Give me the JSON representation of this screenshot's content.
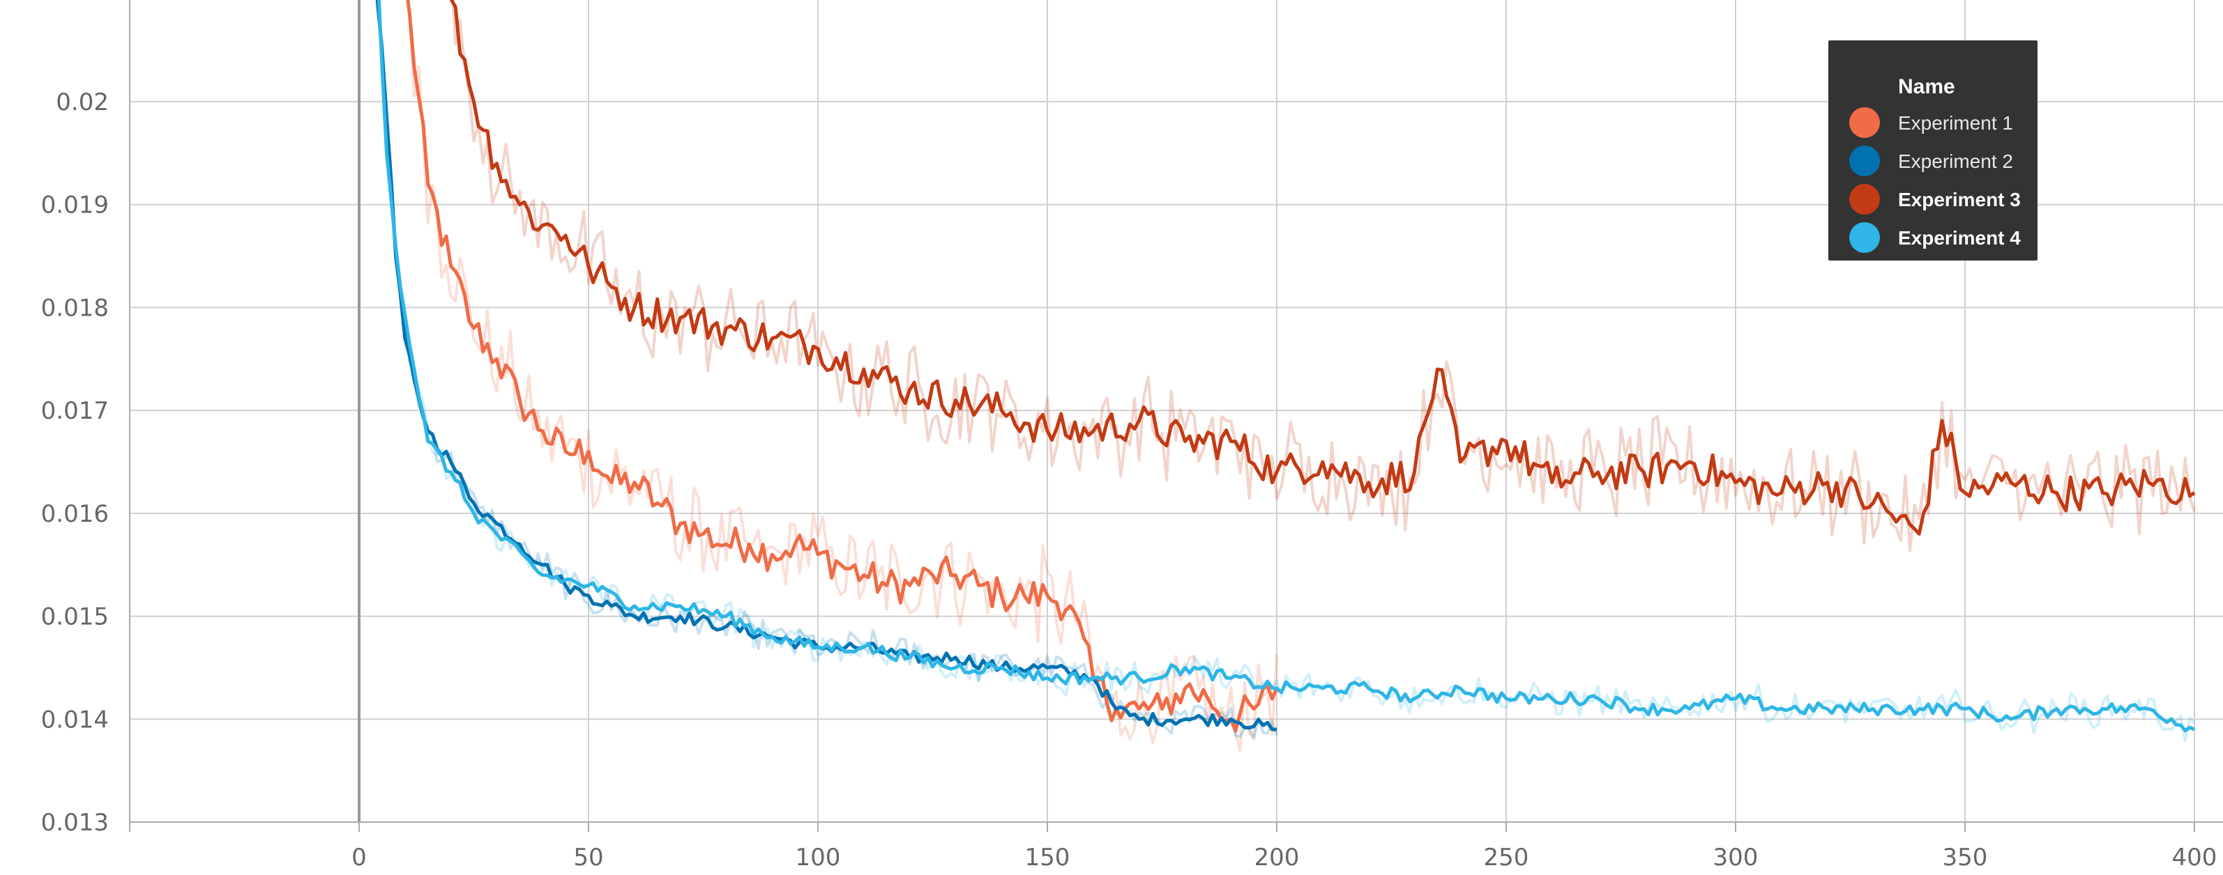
{
  "chart_data": {
    "type": "line",
    "title": "",
    "xlabel": "",
    "ylabel": "",
    "xlim": [
      -50,
      400
    ],
    "ylim": [
      0.013,
      0.021
    ],
    "x_ticks": [
      0,
      50,
      100,
      150,
      200,
      250,
      300,
      350,
      400
    ],
    "x_tick_labels": [
      "0",
      "50",
      "100",
      "150",
      "200",
      "250",
      "300",
      "350",
      "400"
    ],
    "y_ticks": [
      0.013,
      0.014,
      0.015,
      0.016,
      0.017,
      0.018,
      0.019,
      0.02
    ],
    "y_tick_labels": [
      "0.013",
      "0.014",
      "0.015",
      "0.016",
      "0.017",
      "0.018",
      "0.019",
      "0.02"
    ],
    "grid": true,
    "legend": {
      "title": "Name",
      "placement": "top-right",
      "entries": [
        "Experiment 1",
        "Experiment 2",
        "Experiment 3",
        "Experiment 4"
      ]
    },
    "series": [
      {
        "name": "Experiment 1",
        "color": "#ef6c47",
        "x": [
          10,
          15,
          20,
          25,
          30,
          35,
          40,
          45,
          50,
          55,
          60,
          65,
          70,
          75,
          80,
          85,
          90,
          95,
          100,
          105,
          110,
          115,
          120,
          125,
          130,
          135,
          140,
          145,
          150,
          155,
          160,
          165,
          170,
          175,
          180,
          185,
          190,
          195,
          200
        ],
        "y": [
          0.0212,
          0.0192,
          0.0184,
          0.0178,
          0.0175,
          0.0171,
          0.0168,
          0.0166,
          0.0166,
          0.0163,
          0.0163,
          0.0161,
          0.0159,
          0.0158,
          0.0157,
          0.0157,
          0.0156,
          0.0157,
          0.0156,
          0.0155,
          0.0154,
          0.0153,
          0.0153,
          0.0154,
          0.0154,
          0.0153,
          0.0152,
          0.0152,
          0.0152,
          0.0151,
          0.0144,
          0.0141,
          0.0141,
          0.0141,
          0.0143,
          0.0142,
          0.014,
          0.0141,
          0.0143
        ]
      },
      {
        "name": "Experiment 2",
        "color": "#0072b2",
        "x": [
          3,
          5,
          8,
          10,
          12,
          15,
          20,
          25,
          30,
          35,
          40,
          45,
          50,
          55,
          60,
          70,
          80,
          90,
          100,
          110,
          120,
          130,
          140,
          150,
          160,
          165,
          170,
          180,
          190,
          200
        ],
        "y": [
          0.0215,
          0.0205,
          0.0185,
          0.0177,
          0.0173,
          0.0168,
          0.0165,
          0.0161,
          0.0159,
          0.0157,
          0.0155,
          0.0153,
          0.0152,
          0.0151,
          0.015,
          0.015,
          0.0149,
          0.0148,
          0.0147,
          0.0147,
          0.0146,
          0.0146,
          0.0145,
          0.0145,
          0.0144,
          0.0141,
          0.014,
          0.014,
          0.014,
          0.0139
        ]
      },
      {
        "name": "Experiment 3",
        "color": "#c23b14",
        "x": [
          20,
          25,
          30,
          35,
          40,
          45,
          50,
          55,
          60,
          70,
          80,
          90,
          100,
          110,
          120,
          130,
          140,
          150,
          160,
          170,
          180,
          190,
          200,
          210,
          220,
          230,
          235,
          240,
          250,
          260,
          270,
          280,
          290,
          300,
          310,
          320,
          330,
          340,
          345,
          350,
          360,
          370,
          380,
          390,
          400
        ],
        "y": [
          0.021,
          0.02,
          0.0194,
          0.019,
          0.0188,
          0.0187,
          0.0184,
          0.0182,
          0.018,
          0.0179,
          0.0178,
          0.0177,
          0.0176,
          0.0174,
          0.0172,
          0.0171,
          0.017,
          0.0168,
          0.0168,
          0.0169,
          0.0167,
          0.0167,
          0.0164,
          0.0165,
          0.0163,
          0.0164,
          0.0174,
          0.0165,
          0.0167,
          0.0163,
          0.0164,
          0.0164,
          0.0165,
          0.0163,
          0.0162,
          0.0163,
          0.0161,
          0.0158,
          0.0169,
          0.0162,
          0.0163,
          0.0162,
          0.0162,
          0.0163,
          0.0162
        ]
      },
      {
        "name": "Experiment 4",
        "color": "#2fb5e6",
        "x": [
          4,
          6,
          9,
          12,
          15,
          20,
          25,
          30,
          40,
          50,
          60,
          70,
          80,
          90,
          100,
          110,
          120,
          130,
          140,
          150,
          160,
          170,
          180,
          190,
          200,
          210,
          220,
          230,
          240,
          250,
          260,
          270,
          280,
          290,
          300,
          310,
          320,
          330,
          340,
          350,
          360,
          370,
          380,
          390,
          400
        ],
        "y": [
          0.0213,
          0.0195,
          0.0182,
          0.0174,
          0.0167,
          0.0164,
          0.016,
          0.0158,
          0.0154,
          0.0153,
          0.0151,
          0.0151,
          0.015,
          0.0148,
          0.0147,
          0.0147,
          0.0146,
          0.0145,
          0.0145,
          0.0144,
          0.0144,
          0.0144,
          0.0145,
          0.0144,
          0.0143,
          0.0143,
          0.0143,
          0.0142,
          0.0143,
          0.0142,
          0.0142,
          0.0142,
          0.0141,
          0.0141,
          0.0142,
          0.0141,
          0.0141,
          0.0141,
          0.0141,
          0.0141,
          0.014,
          0.0141,
          0.0141,
          0.0141,
          0.0139
        ]
      }
    ]
  }
}
